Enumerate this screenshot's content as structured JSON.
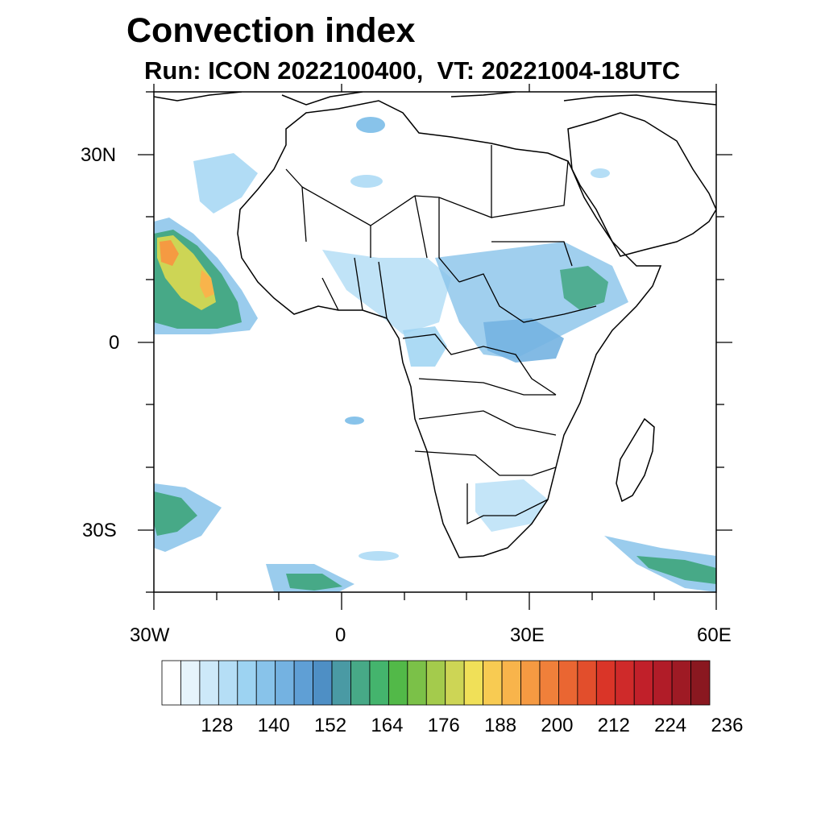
{
  "title": "Convection index",
  "subtitle": "Run: ICON 2022100400,  VT: 20221004-18UTC",
  "map": {
    "lon_range": [
      -30,
      60
    ],
    "lat_range": [
      -40,
      40
    ],
    "lon_ticks": [
      "30W",
      "0",
      "30E",
      "60E"
    ],
    "lat_ticks": [
      "30N",
      "0",
      "30S"
    ]
  },
  "colorbar": {
    "labels": [
      "128",
      "140",
      "152",
      "164",
      "176",
      "188",
      "200",
      "212",
      "224",
      "236"
    ],
    "colors": [
      "#ffffff",
      "#e6f4fc",
      "#cde9f9",
      "#b5def6",
      "#9dd3f2",
      "#88c3ea",
      "#74b2e1",
      "#5f9fd5",
      "#4e8fc5",
      "#4a9aa4",
      "#47a987",
      "#44b46d",
      "#52b948",
      "#7bc148",
      "#a4cb4c",
      "#cdd555",
      "#f0e058",
      "#f8cb52",
      "#f8b44b",
      "#f59a42",
      "#f0803a",
      "#ea6632",
      "#e24e2c",
      "#da3528",
      "#cf2a2a",
      "#c1202a",
      "#b11c28",
      "#9e1a24",
      "#8a1820"
    ]
  },
  "fields": {
    "land": "#ffffff",
    "outline": "#000000",
    "low": "#74b2e1",
    "mid": "#47a987",
    "high": "#f0e058",
    "peak": "#f0803a"
  }
}
